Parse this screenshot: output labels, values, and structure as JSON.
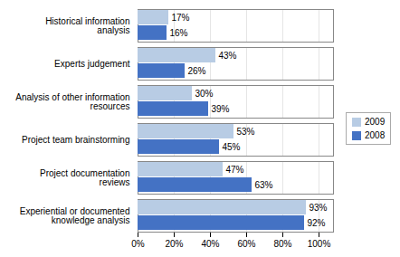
{
  "chart_data": {
    "type": "bar",
    "orientation": "horizontal",
    "categories": [
      "Historical information\nanalysis",
      "Experts judgement",
      "Analysis of other information\nresources",
      "Project team brainstorming",
      "Project documentation\nreviews",
      "Experiential or documented\nknowledge analysis"
    ],
    "series": [
      {
        "name": "2009",
        "color": "#b8cce4",
        "values": [
          17,
          43,
          30,
          53,
          47,
          93
        ],
        "value_labels": [
          "17%",
          "43%",
          "30%",
          "53%",
          "47%",
          "93%"
        ]
      },
      {
        "name": "2008",
        "color": "#4472c4",
        "values": [
          16,
          26,
          39,
          45,
          63,
          92
        ],
        "value_labels": [
          "16%",
          "26%",
          "39%",
          "45%",
          "63%",
          "92%"
        ]
      }
    ],
    "xlim": [
      0,
      108
    ],
    "xticks": [
      {
        "value": 0,
        "label": "0%"
      },
      {
        "value": 20,
        "label": "20%"
      },
      {
        "value": 40,
        "label": "40%"
      },
      {
        "value": 60,
        "label": "60%"
      },
      {
        "value": 80,
        "label": "80%"
      },
      {
        "value": 100,
        "label": "100%"
      }
    ],
    "grid": true,
    "legend": "right",
    "data_labels": true
  }
}
